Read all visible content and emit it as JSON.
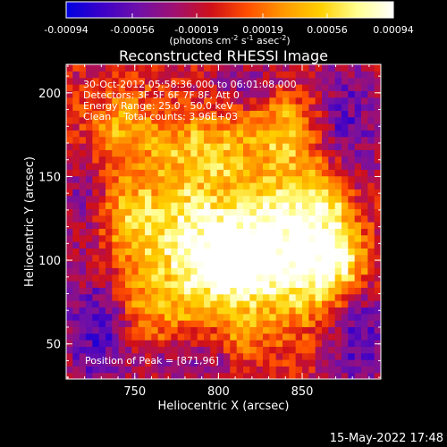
{
  "colors": {
    "background": "#000000",
    "foreground": "#ffffff",
    "colormap": [
      "#0000e0",
      "#3c00c8",
      "#7010a8",
      "#a01070",
      "#d01018",
      "#ff5000",
      "#ff9a00",
      "#ffd000",
      "#ffff90",
      "#ffffff"
    ]
  },
  "colorbar": {
    "tick_labels": [
      "-0.00094",
      "-0.00056",
      "-0.00019",
      "0.00019",
      "0.00056",
      "0.00094"
    ],
    "unit_label": "(photons cm",
    "unit_sup1": "-2",
    "unit_mid": " s",
    "unit_sup2": "-1",
    "unit_end": " asec",
    "unit_sup3": "-2",
    "unit_close": ")"
  },
  "footer": {
    "timestamp": "15-May-2022 17:48"
  },
  "chart_data": {
    "type": "heatmap",
    "title": "Reconstructed RHESSI Image",
    "xlabel": "Heliocentric X (arcsec)",
    "ylabel": "Heliocentric Y (arcsec)",
    "x_ticks": [
      "750",
      "800",
      "850"
    ],
    "y_ticks": [
      "50",
      "100",
      "150",
      "200"
    ],
    "xlim": [
      709,
      897
    ],
    "ylim": [
      29,
      217
    ],
    "value_range": [
      -0.00094,
      0.00094
    ],
    "annotations": [
      "30-Oct-2012 05:58:36.000 to 06:01:08.000",
      "Detectors: 3F 5F 6F 7F 8F, Att 0",
      "Energy Range: 25.0 - 50.0 keV",
      "Clean    Total counts: 3.96E+03"
    ],
    "peak_label": "Position of Peak = [871,96]",
    "peak": {
      "x": 871,
      "y": 96
    },
    "emission_sources": [
      {
        "x": 868,
        "y": 100,
        "sx": 14,
        "sy": 18,
        "amp": 0.00094
      },
      {
        "x": 845,
        "y": 115,
        "sx": 18,
        "sy": 40,
        "amp": 0.00082
      },
      {
        "x": 818,
        "y": 105,
        "sx": 16,
        "sy": 20,
        "amp": 0.00075
      },
      {
        "x": 800,
        "y": 96,
        "sx": 16,
        "sy": 16,
        "amp": 0.00085
      },
      {
        "x": 780,
        "y": 122,
        "sx": 24,
        "sy": 18,
        "amp": 0.00068
      },
      {
        "x": 760,
        "y": 78,
        "sx": 22,
        "sy": 22,
        "amp": 0.00056
      },
      {
        "x": 792,
        "y": 165,
        "sx": 22,
        "sy": 18,
        "amp": 0.00062
      },
      {
        "x": 740,
        "y": 178,
        "sx": 18,
        "sy": 18,
        "amp": 0.00046
      },
      {
        "x": 842,
        "y": 185,
        "sx": 14,
        "sy": 16,
        "amp": 0.0004
      },
      {
        "x": 866,
        "y": 140,
        "sx": 10,
        "sy": 14,
        "amp": 0.00044
      },
      {
        "x": 746,
        "y": 128,
        "sx": 12,
        "sy": 14,
        "amp": 0.00036
      },
      {
        "x": 814,
        "y": 58,
        "sx": 10,
        "sy": 10,
        "amp": 0.00034
      }
    ],
    "dark_regions": [
      {
        "x": 730,
        "y": 60,
        "sx": 14,
        "sy": 22,
        "amp": -0.0007
      },
      {
        "x": 885,
        "y": 55,
        "sx": 18,
        "sy": 24,
        "amp": -0.00052
      },
      {
        "x": 875,
        "y": 180,
        "sx": 16,
        "sy": 30,
        "amp": -0.00048
      },
      {
        "x": 720,
        "y": 140,
        "sx": 10,
        "sy": 30,
        "amp": -0.0003
      },
      {
        "x": 780,
        "y": 40,
        "sx": 18,
        "sy": 10,
        "amp": -0.00038
      },
      {
        "x": 820,
        "y": 205,
        "sx": 20,
        "sy": 10,
        "amp": -0.00034
      }
    ],
    "grid": false
  }
}
